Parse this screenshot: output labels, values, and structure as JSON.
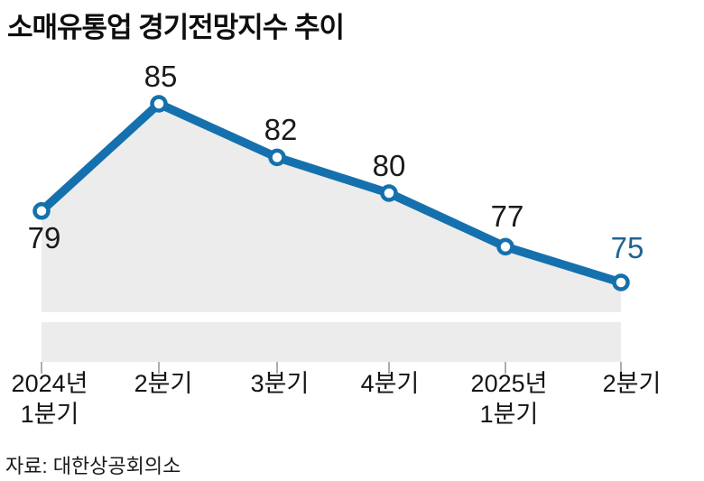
{
  "chart_data": {
    "type": "line",
    "title": "소매유통업 경기전망지수 추이",
    "categories": [
      {
        "line1": "2024년",
        "line2": "1분기"
      },
      {
        "line1": "2분기",
        "line2": ""
      },
      {
        "line1": "3분기",
        "line2": ""
      },
      {
        "line1": "4분기",
        "line2": ""
      },
      {
        "line1": "2025년",
        "line2": "1분기"
      },
      {
        "line1": "2분기",
        "line2": ""
      }
    ],
    "values": [
      79,
      85,
      82,
      80,
      77,
      75
    ],
    "ylim": [
      75,
      85
    ],
    "grid": false,
    "legend": "none",
    "source": "자료: 대한상공회의소",
    "colors": {
      "line": "#1571ad",
      "area": "#ececec",
      "marker_fill": "#ffffff",
      "value_label": "#1a1a1a",
      "last_value_label": "#1d6496",
      "tick": "#aeaeae",
      "title": "#0e0e0e"
    }
  }
}
